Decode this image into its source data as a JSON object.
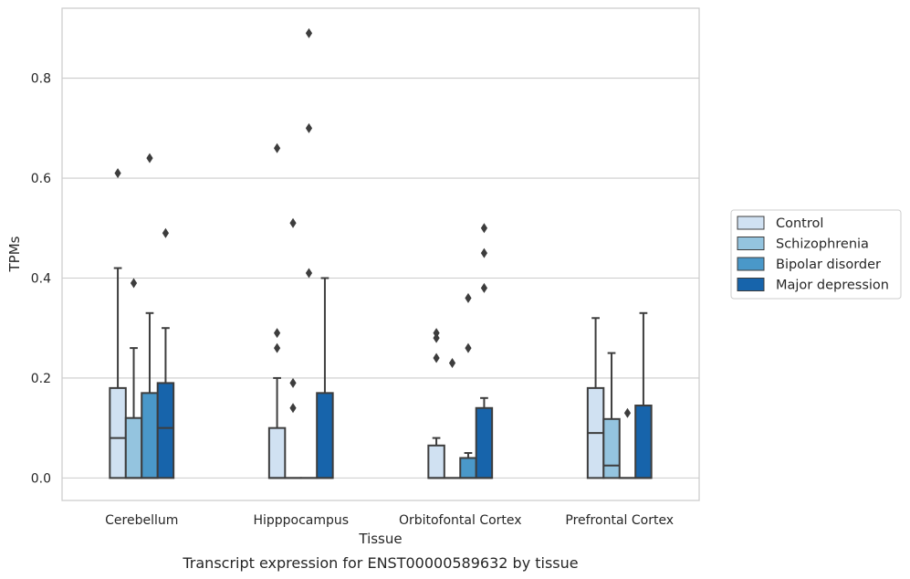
{
  "caption": "Transcript expression for ENST00000589632 by tissue",
  "chart_data": {
    "type": "box",
    "title": "",
    "xlabel": "Tissue",
    "ylabel": "TPMs",
    "ylim": [
      -0.045,
      0.94
    ],
    "yticks": [
      0.0,
      0.2,
      0.4,
      0.6,
      0.8
    ],
    "ytick_labels": [
      "0.0",
      "0.2",
      "0.4",
      "0.6",
      "0.8"
    ],
    "grid": "horizontal",
    "legend_position": "right",
    "categories": [
      "Cerebellum",
      "Hipppocampus",
      "Orbitofontal Cortex",
      "Prefrontal Cortex"
    ],
    "series": [
      {
        "name": "Control",
        "color": "#d0e1f2",
        "boxes": [
          {
            "q1": 0.0,
            "median": 0.08,
            "q3": 0.18,
            "whisker_low": 0.0,
            "whisker_high": 0.42,
            "outliers": [
              0.61
            ]
          },
          {
            "q1": 0.0,
            "median": 0.0,
            "q3": 0.1,
            "whisker_low": 0.0,
            "whisker_high": 0.2,
            "outliers": [
              0.26,
              0.29,
              0.66
            ]
          },
          {
            "q1": 0.0,
            "median": 0.0,
            "q3": 0.065,
            "whisker_low": 0.0,
            "whisker_high": 0.08,
            "outliers": [
              0.24,
              0.28,
              0.29
            ]
          },
          {
            "q1": 0.0,
            "median": 0.09,
            "q3": 0.18,
            "whisker_low": 0.0,
            "whisker_high": 0.32,
            "outliers": []
          }
        ]
      },
      {
        "name": "Schizophrenia",
        "color": "#94c4df",
        "boxes": [
          {
            "q1": 0.0,
            "median": 0.0,
            "q3": 0.12,
            "whisker_low": 0.0,
            "whisker_high": 0.26,
            "outliers": [
              0.39
            ]
          },
          {
            "q1": 0.0,
            "median": 0.0,
            "q3": 0.0,
            "whisker_low": 0.0,
            "whisker_high": 0.0,
            "outliers": [
              0.14,
              0.19,
              0.51
            ]
          },
          {
            "q1": 0.0,
            "median": 0.0,
            "q3": 0.0,
            "whisker_low": 0.0,
            "whisker_high": 0.0,
            "outliers": [
              0.23
            ]
          },
          {
            "q1": 0.0,
            "median": 0.025,
            "q3": 0.118,
            "whisker_low": 0.0,
            "whisker_high": 0.25,
            "outliers": []
          }
        ]
      },
      {
        "name": "Bipolar disorder",
        "color": "#4a98c9",
        "boxes": [
          {
            "q1": 0.0,
            "median": 0.0,
            "q3": 0.17,
            "whisker_low": 0.0,
            "whisker_high": 0.33,
            "outliers": [
              0.64
            ]
          },
          {
            "q1": 0.0,
            "median": 0.0,
            "q3": 0.0,
            "whisker_low": 0.0,
            "whisker_high": 0.0,
            "outliers": [
              0.41,
              0.7,
              0.89
            ]
          },
          {
            "q1": 0.0,
            "median": 0.0,
            "q3": 0.04,
            "whisker_low": 0.0,
            "whisker_high": 0.05,
            "outliers": [
              0.26,
              0.36
            ]
          },
          {
            "q1": 0.0,
            "median": 0.0,
            "q3": 0.0,
            "whisker_low": 0.0,
            "whisker_high": 0.0,
            "outliers": [
              0.13
            ]
          }
        ]
      },
      {
        "name": "Major depression",
        "color": "#1764ab",
        "boxes": [
          {
            "q1": 0.0,
            "median": 0.1,
            "q3": 0.19,
            "whisker_low": 0.0,
            "whisker_high": 0.3,
            "outliers": [
              0.49
            ]
          },
          {
            "q1": 0.0,
            "median": 0.0,
            "q3": 0.17,
            "whisker_low": 0.0,
            "whisker_high": 0.4,
            "outliers": []
          },
          {
            "q1": 0.0,
            "median": 0.0,
            "q3": 0.14,
            "whisker_low": 0.0,
            "whisker_high": 0.16,
            "outliers": [
              0.38,
              0.45,
              0.5
            ]
          },
          {
            "q1": 0.0,
            "median": 0.0,
            "q3": 0.145,
            "whisker_low": 0.0,
            "whisker_high": 0.33,
            "outliers": []
          }
        ]
      }
    ]
  }
}
